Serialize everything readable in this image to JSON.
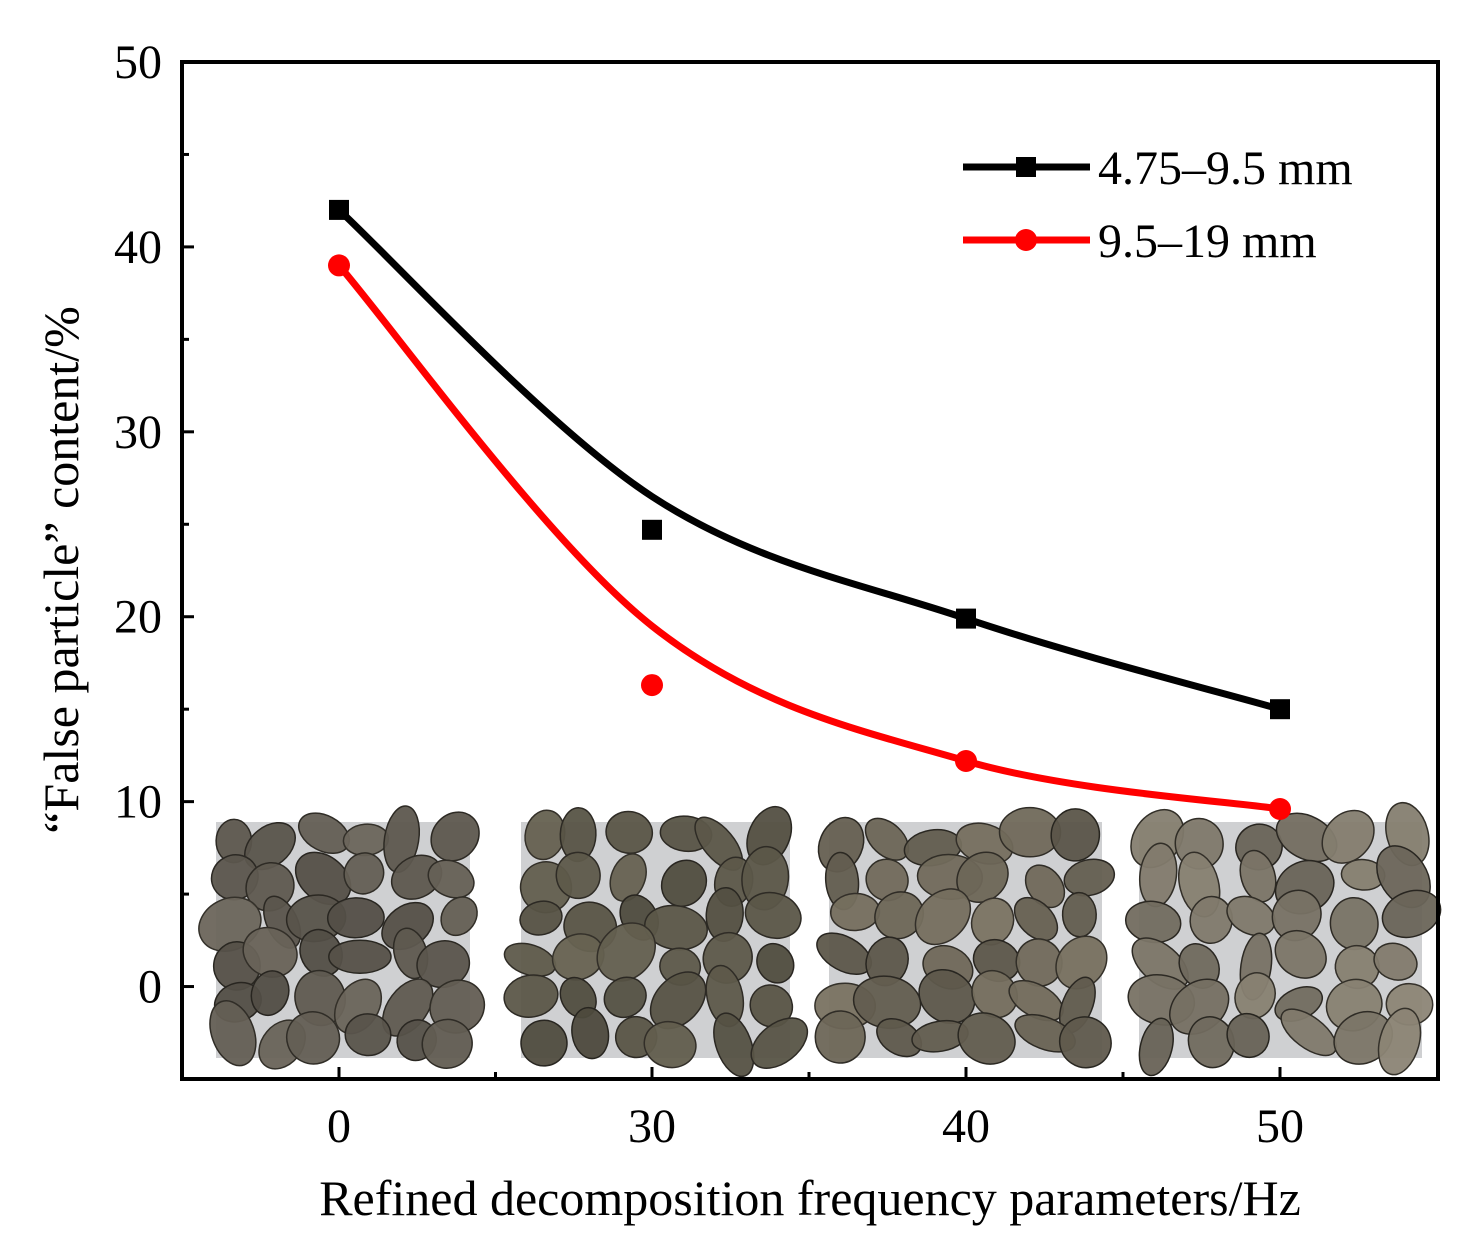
{
  "chart_data": {
    "type": "line",
    "title": "",
    "xlabel": "Refined decomposition frequency parameters/Hz",
    "ylabel": "“False particle” content/%",
    "categories": [
      "0",
      "30",
      "40",
      "50"
    ],
    "ylim": [
      -5,
      50
    ],
    "yticks": [
      0,
      10,
      20,
      30,
      40,
      50
    ],
    "grid": false,
    "legend_position": "top-right",
    "series": [
      {
        "name": "4.75–9.5 mm",
        "color": "#000000",
        "marker": "square",
        "points": [
          42.0,
          24.7,
          19.9,
          15.0
        ],
        "fit": [
          42.0,
          26.5,
          19.9,
          15.0
        ]
      },
      {
        "name": "9.5–19 mm",
        "color": "#ff0000",
        "marker": "circle",
        "points": [
          39.0,
          16.3,
          12.2,
          9.6
        ],
        "fit": [
          39.0,
          19.5,
          12.2,
          9.6
        ]
      }
    ],
    "insets": [
      {
        "category": "0",
        "icon": "gravel-photo-icon",
        "tone": "#5f5a50"
      },
      {
        "category": "30",
        "icon": "gravel-photo-icon",
        "tone": "#5b5648"
      },
      {
        "category": "40",
        "icon": "gravel-photo-icon",
        "tone": "#6a6455"
      },
      {
        "category": "50",
        "icon": "gravel-photo-icon",
        "tone": "#7a7466"
      }
    ]
  }
}
